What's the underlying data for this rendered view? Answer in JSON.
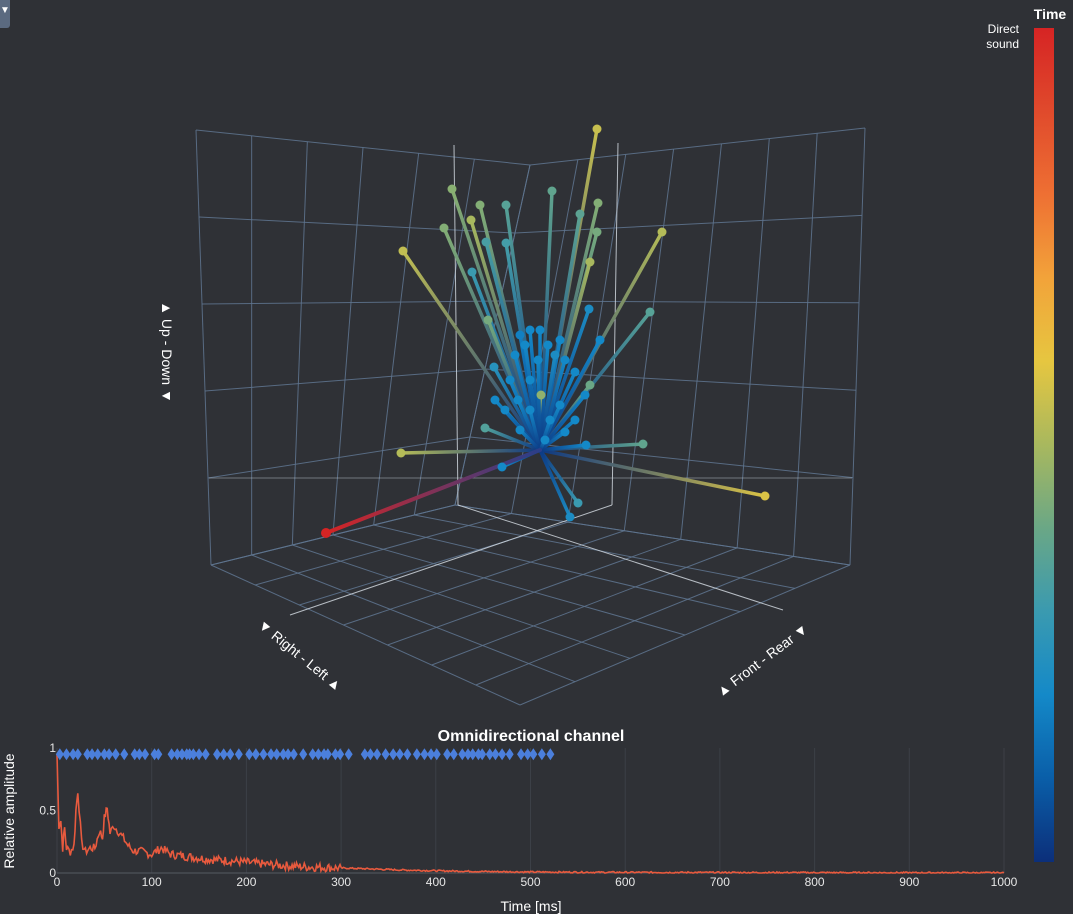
{
  "menu": {
    "toggle_icon": "▼"
  },
  "scene": {
    "axis_up_down": "▲ Up - Down ▼",
    "axis_right_left": "▼ Right - Left ▲",
    "axis_front_rear": "▲ Front - Rear ▼"
  },
  "colorbar": {
    "title": "Time",
    "top_label_line1": "Direct",
    "top_label_line2": "sound",
    "colorscale": [
      "#0c2f7a",
      "#0a5ea8",
      "#1489c8",
      "#3a9ab0",
      "#6aa786",
      "#a8b85e",
      "#e6c640",
      "#f2a33a",
      "#ee7033",
      "#e04a2c",
      "#d62424"
    ]
  },
  "reflections": {
    "direct_sound_color": "#d62424",
    "line_count": 70
  },
  "chart_data": {
    "type": "line",
    "title": "Omnidirectional channel",
    "xlabel": "Time [ms]",
    "ylabel": "Relative amplitude",
    "xlim": [
      0,
      1000
    ],
    "ylim": [
      0,
      1
    ],
    "xticks": [
      "0",
      "100",
      "200",
      "300",
      "400",
      "500",
      "600",
      "700",
      "800",
      "900",
      "1000"
    ],
    "yticks": [
      "0",
      "0.5",
      "1"
    ],
    "series": [
      {
        "type": "line",
        "color": "#e85a3e",
        "x": [
          0,
          2,
          4,
          6,
          8,
          10,
          14,
          18,
          20,
          22,
          26,
          30,
          35,
          40,
          45,
          48,
          50,
          53,
          56,
          60,
          65,
          70,
          75,
          80,
          90,
          100,
          110,
          120,
          140,
          160,
          180,
          200,
          220,
          240,
          260,
          280,
          300,
          330,
          360,
          400,
          450,
          500,
          600,
          700,
          800,
          900,
          1000
        ],
        "y": [
          0.95,
          0.38,
          0.42,
          0.2,
          0.36,
          0.2,
          0.17,
          0.22,
          0.5,
          0.66,
          0.24,
          0.17,
          0.2,
          0.2,
          0.34,
          0.28,
          0.44,
          0.52,
          0.32,
          0.38,
          0.33,
          0.28,
          0.22,
          0.18,
          0.17,
          0.15,
          0.2,
          0.15,
          0.13,
          0.11,
          0.1,
          0.085,
          0.07,
          0.06,
          0.05,
          0.045,
          0.04,
          0.033,
          0.025,
          0.018,
          0.012,
          0.008,
          0.005,
          0.004,
          0.003,
          0.002,
          0.002
        ]
      },
      {
        "type": "scatter",
        "marker": "diamond",
        "color": "#4b7fdc",
        "y_value": 0.95,
        "x": [
          3,
          10,
          17,
          22,
          32,
          37,
          43,
          50,
          55,
          62,
          71,
          82,
          87,
          93,
          103,
          107,
          121,
          127,
          132,
          137,
          140,
          144,
          150,
          157,
          169,
          176,
          183,
          192,
          203,
          210,
          218,
          226,
          232,
          239,
          244,
          250,
          260,
          270,
          276,
          282,
          286,
          294,
          299,
          308,
          325,
          331,
          338,
          347,
          355,
          362,
          370,
          380,
          388,
          395,
          401,
          412,
          419,
          428,
          434,
          439,
          445,
          449,
          457,
          463,
          470,
          478,
          490,
          497,
          503,
          512,
          521
        ]
      }
    ]
  }
}
